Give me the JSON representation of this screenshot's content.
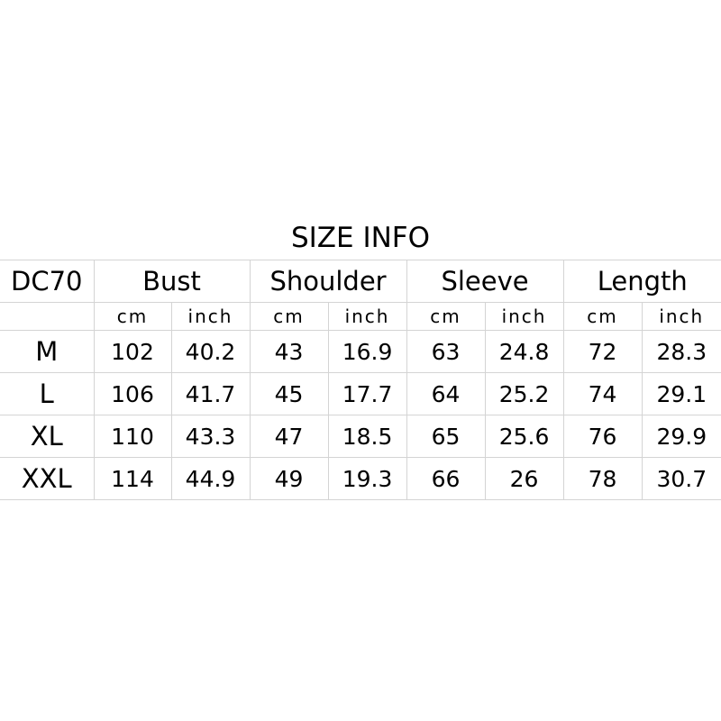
{
  "title": "SIZE INFO",
  "model": "DC70",
  "measurements": [
    "Bust",
    "Shoulder",
    "Sleeve",
    "Length"
  ],
  "units": [
    "cm",
    "inch"
  ],
  "rows": [
    {
      "size": "M",
      "values": [
        "102",
        "40.2",
        "43",
        "16.9",
        "63",
        "24.8",
        "72",
        "28.3"
      ]
    },
    {
      "size": "L",
      "values": [
        "106",
        "41.7",
        "45",
        "17.7",
        "64",
        "25.2",
        "74",
        "29.1"
      ]
    },
    {
      "size": "XL",
      "values": [
        "110",
        "43.3",
        "47",
        "18.5",
        "65",
        "25.6",
        "76",
        "29.9"
      ]
    },
    {
      "size": "XXL",
      "values": [
        "114",
        "44.9",
        "49",
        "19.3",
        "66",
        "26",
        "78",
        "30.7"
      ]
    }
  ]
}
